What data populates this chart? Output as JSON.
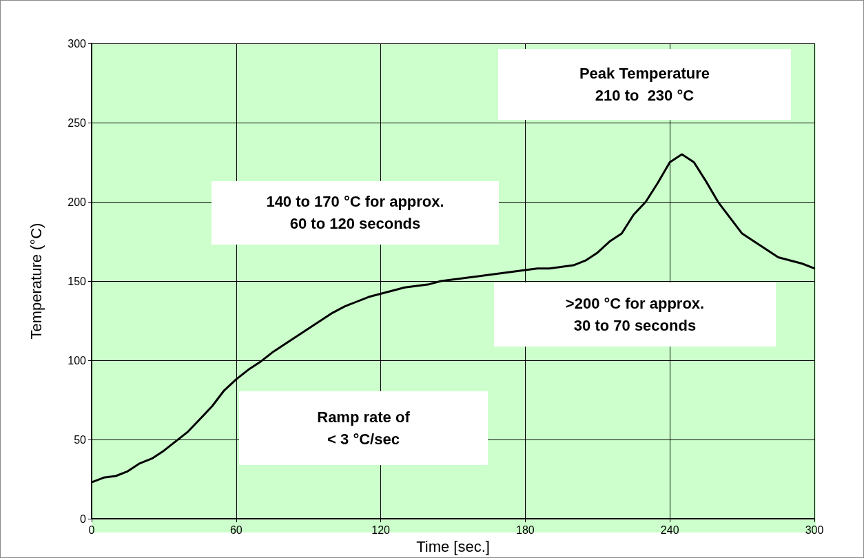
{
  "chart_data": {
    "type": "line",
    "xlabel": "Time [sec.]",
    "ylabel": "Temperature (°C)",
    "x": [
      0,
      5,
      10,
      15,
      20,
      25,
      30,
      35,
      40,
      45,
      50,
      55,
      60,
      65,
      70,
      75,
      80,
      90,
      100,
      105,
      115,
      130,
      140,
      145,
      160,
      180,
      185,
      190,
      200,
      205,
      210,
      215,
      220,
      225,
      230,
      235,
      240,
      245,
      250,
      255,
      260,
      270,
      285,
      295,
      300
    ],
    "series": [
      {
        "color": "#000000",
        "values": [
          23,
          26,
          27,
          30,
          35,
          38,
          43,
          49,
          55,
          63,
          71,
          81,
          88,
          94,
          99,
          105,
          110,
          120,
          130,
          134,
          140,
          146,
          148,
          150,
          153,
          157,
          158,
          158,
          160,
          163,
          168,
          175,
          180,
          192,
          200,
          212,
          225,
          230,
          225,
          213,
          200,
          180,
          165,
          161,
          158
        ]
      }
    ],
    "xlim": [
      0,
      300
    ],
    "xticks": [
      0,
      60,
      120,
      180,
      240,
      300
    ],
    "ylim": [
      0,
      300
    ],
    "yticks": [
      0,
      50,
      100,
      150,
      200,
      250,
      300
    ],
    "grid": true,
    "marker": "none",
    "line_style": "solid",
    "annotations": [
      "Peak Temperature\n210 to  230 °C",
      "140 to 170 °C for approx.\n60 to 120 seconds",
      ">200 °C for approx.\n30 to 70 seconds",
      "Ramp rate of\n< 3 °C/sec"
    ]
  }
}
